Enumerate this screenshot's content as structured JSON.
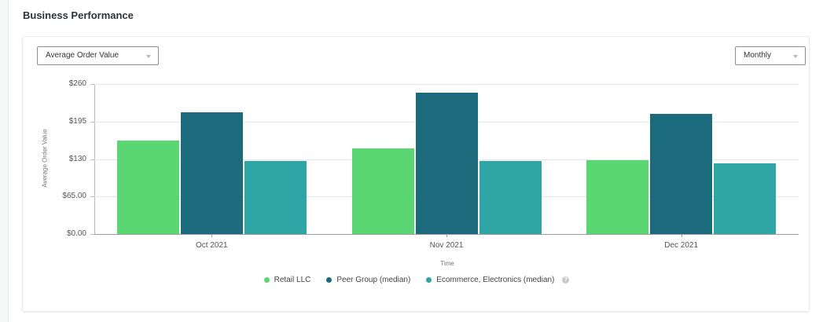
{
  "header": {
    "title": "Business Performance"
  },
  "controls": {
    "metric_select": {
      "value": "Average Order Value"
    },
    "period_select": {
      "value": "Monthly"
    }
  },
  "colors": {
    "retail": "#5ad672",
    "peer": "#1b6b7d",
    "ecommerce": "#2fa5a5"
  },
  "chart_data": {
    "type": "bar",
    "title": "",
    "xlabel": "Time",
    "ylabel": "Average Order Value",
    "categories": [
      "Oct 2021",
      "Nov 2021",
      "Dec 2021"
    ],
    "series": [
      {
        "name": "Retail LLC",
        "color": "#5ad672",
        "values": [
          162,
          148,
          128
        ]
      },
      {
        "name": "Peer Group (median)",
        "color": "#1b6b7d",
        "values": [
          211,
          245,
          208
        ]
      },
      {
        "name": "Ecommerce, Electronics (median)",
        "color": "#2fa5a5",
        "values": [
          127,
          127,
          122
        ]
      }
    ],
    "yticks": [
      "$0.00",
      "$65.00",
      "$130",
      "$195",
      "$260"
    ],
    "ylim": [
      0,
      260
    ],
    "grid": true,
    "legend_position": "bottom",
    "legend_help_icon": true
  }
}
